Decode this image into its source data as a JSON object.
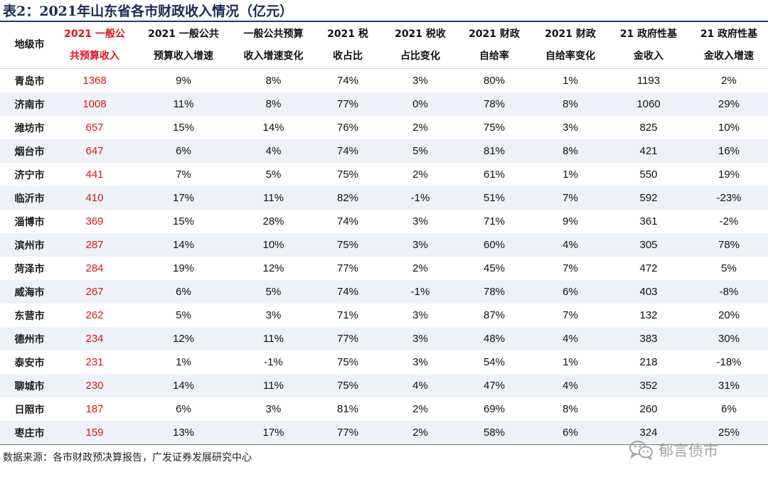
{
  "title": "表2：2021年山东省各市财政收入情况（亿元）",
  "headers": [
    [
      "地级市"
    ],
    [
      "2021 一般公",
      "共预算收入"
    ],
    [
      "2021 一般公共",
      "预算收入增速"
    ],
    [
      "一般公共预算",
      "收入增速变化"
    ],
    [
      "2021 税",
      "收占比"
    ],
    [
      "2021 税收",
      "占比变化"
    ],
    [
      "2021 财政",
      "自给率"
    ],
    [
      "2021 财政",
      "自给率变化"
    ],
    [
      "21 政府性基",
      "金收入"
    ],
    [
      "21 政府性基",
      "金收入增速"
    ]
  ],
  "rows": [
    [
      "青岛市",
      "1368",
      "9%",
      "8%",
      "74%",
      "3%",
      "80%",
      "1%",
      "1193",
      "2%"
    ],
    [
      "济南市",
      "1008",
      "11%",
      "8%",
      "77%",
      "0%",
      "78%",
      "8%",
      "1060",
      "29%"
    ],
    [
      "潍坊市",
      "657",
      "15%",
      "14%",
      "76%",
      "2%",
      "75%",
      "3%",
      "825",
      "10%"
    ],
    [
      "烟台市",
      "647",
      "6%",
      "4%",
      "74%",
      "5%",
      "81%",
      "8%",
      "421",
      "16%"
    ],
    [
      "济宁市",
      "441",
      "7%",
      "5%",
      "75%",
      "2%",
      "61%",
      "1%",
      "550",
      "19%"
    ],
    [
      "临沂市",
      "410",
      "17%",
      "11%",
      "82%",
      "-1%",
      "51%",
      "7%",
      "592",
      "-23%"
    ],
    [
      "淄博市",
      "369",
      "15%",
      "28%",
      "74%",
      "3%",
      "71%",
      "9%",
      "361",
      "-2%"
    ],
    [
      "滨州市",
      "287",
      "14%",
      "10%",
      "75%",
      "3%",
      "60%",
      "4%",
      "305",
      "78%"
    ],
    [
      "菏泽市",
      "284",
      "19%",
      "12%",
      "77%",
      "2%",
      "45%",
      "7%",
      "472",
      "5%"
    ],
    [
      "威海市",
      "267",
      "6%",
      "5%",
      "74%",
      "-1%",
      "78%",
      "6%",
      "403",
      "-8%"
    ],
    [
      "东营市",
      "262",
      "5%",
      "3%",
      "71%",
      "3%",
      "87%",
      "7%",
      "132",
      "20%"
    ],
    [
      "德州市",
      "234",
      "12%",
      "11%",
      "77%",
      "3%",
      "48%",
      "4%",
      "383",
      "30%"
    ],
    [
      "泰安市",
      "231",
      "1%",
      "-1%",
      "75%",
      "3%",
      "54%",
      "1%",
      "218",
      "-18%"
    ],
    [
      "聊城市",
      "230",
      "14%",
      "11%",
      "75%",
      "4%",
      "47%",
      "4%",
      "352",
      "31%"
    ],
    [
      "日照市",
      "187",
      "6%",
      "3%",
      "81%",
      "2%",
      "69%",
      "8%",
      "260",
      "6%"
    ],
    [
      "枣庄市",
      "159",
      "13%",
      "17%",
      "77%",
      "2%",
      "58%",
      "6%",
      "324",
      "25%"
    ]
  ],
  "source": "数据来源：各市财政预决算报告，广发证券发展研究中心",
  "watermark": "郁言债市",
  "colors": {
    "accent_red": "#e8101a",
    "title_navy": "#1c2a55",
    "row_band": "#edf1f8"
  }
}
